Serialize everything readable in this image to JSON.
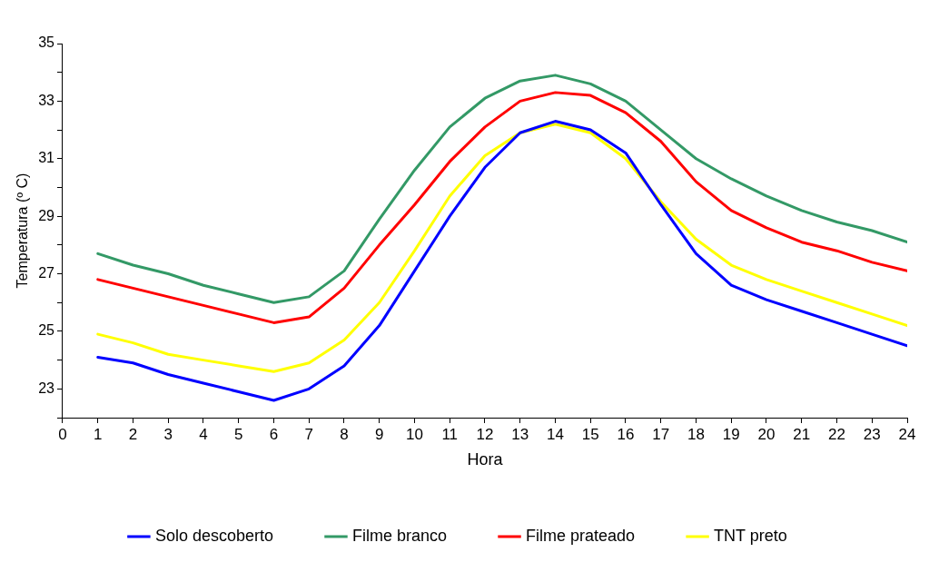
{
  "chart_data": {
    "type": "line",
    "xlabel": "Hora",
    "ylabel": "Temperatura (º C)",
    "x": [
      1,
      2,
      3,
      4,
      5,
      6,
      7,
      8,
      9,
      10,
      11,
      12,
      13,
      14,
      15,
      16,
      17,
      18,
      19,
      20,
      21,
      22,
      23,
      24
    ],
    "xlim": [
      0,
      24
    ],
    "xticks": [
      0,
      1,
      2,
      3,
      4,
      5,
      6,
      7,
      8,
      9,
      10,
      11,
      12,
      13,
      14,
      15,
      16,
      17,
      18,
      19,
      20,
      21,
      22,
      23,
      24
    ],
    "ylim": [
      22,
      35
    ],
    "yticks": [
      {
        "value": 22,
        "label": null
      },
      23,
      {
        "value": 24,
        "label": null
      },
      25,
      {
        "value": 26,
        "label": null
      },
      27,
      {
        "value": 28,
        "label": null
      },
      29,
      {
        "value": 30,
        "label": null
      },
      31,
      {
        "value": 32,
        "label": null
      },
      33,
      {
        "value": 34,
        "label": null
      },
      35
    ],
    "grid": false,
    "legend": "bottom",
    "marker": "none",
    "line_style": "solid",
    "series": [
      {
        "name": "Solo descoberto",
        "color": "#0000ff",
        "values": [
          24.1,
          23.9,
          23.5,
          23.2,
          22.9,
          22.6,
          23.0,
          23.8,
          25.2,
          27.1,
          29.0,
          30.7,
          31.9,
          32.3,
          32.0,
          31.2,
          29.4,
          27.7,
          26.6,
          26.1,
          25.7,
          25.3,
          24.9,
          24.5
        ]
      },
      {
        "name": "Filme branco",
        "color": "#339966",
        "values": [
          27.7,
          27.3,
          27.0,
          26.6,
          26.3,
          26.0,
          26.2,
          27.1,
          28.9,
          30.6,
          32.1,
          33.1,
          33.7,
          33.9,
          33.6,
          33.0,
          32.0,
          31.0,
          30.3,
          29.7,
          29.2,
          28.8,
          28.5,
          28.1
        ]
      },
      {
        "name": "Filme prateado",
        "color": "#ff0000",
        "values": [
          26.8,
          26.5,
          26.2,
          25.9,
          25.6,
          25.3,
          25.5,
          26.5,
          28.0,
          29.4,
          30.9,
          32.1,
          33.0,
          33.3,
          33.2,
          32.6,
          31.6,
          30.2,
          29.2,
          28.6,
          28.1,
          27.8,
          27.4,
          27.1
        ]
      },
      {
        "name": "TNT preto",
        "color": "#ffff00",
        "values": [
          24.9,
          24.6,
          24.2,
          24.0,
          23.8,
          23.6,
          23.9,
          24.7,
          26.0,
          27.8,
          29.7,
          31.1,
          31.9,
          32.2,
          31.9,
          31.0,
          29.5,
          28.2,
          27.3,
          26.8,
          26.4,
          26.0,
          25.6,
          25.2
        ]
      }
    ]
  }
}
